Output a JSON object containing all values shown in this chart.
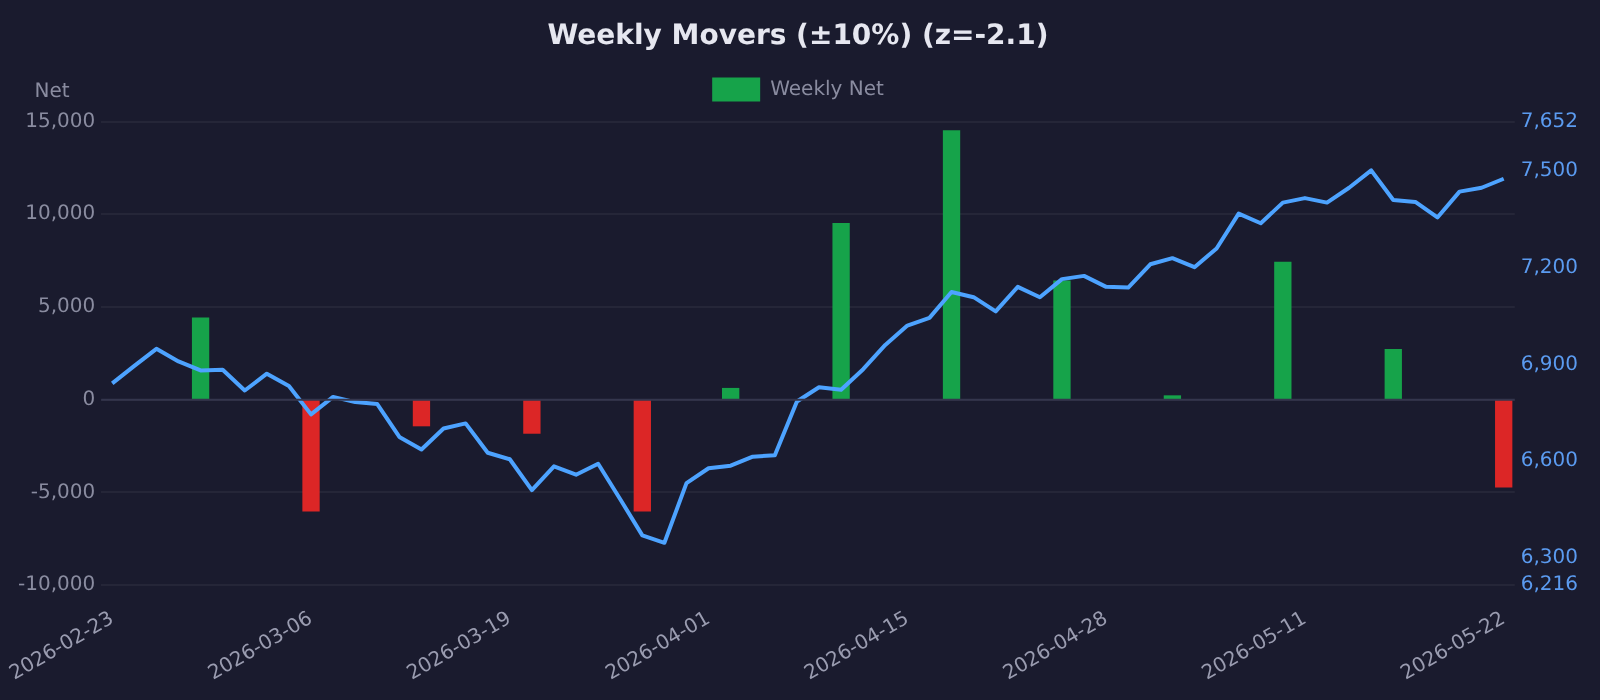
{
  "chart_data": {
    "type": "bar",
    "title": "Weekly Movers (±10%) (z=-2.1)",
    "ylabel": "Net",
    "categories": [
      "2026-02-23",
      null,
      null,
      null,
      null,
      null,
      null,
      null,
      null,
      "2026-03-06",
      null,
      null,
      null,
      null,
      null,
      null,
      null,
      null,
      "2026-03-19",
      null,
      null,
      null,
      null,
      null,
      null,
      null,
      null,
      "2026-04-01",
      null,
      null,
      null,
      null,
      null,
      null,
      null,
      null,
      "2026-04-15",
      null,
      null,
      null,
      null,
      null,
      null,
      null,
      null,
      "2026-04-28",
      null,
      null,
      null,
      null,
      null,
      null,
      null,
      null,
      "2026-05-11",
      null,
      null,
      null,
      null,
      null,
      null,
      null,
      null,
      "2026-05-22"
    ],
    "series": [
      {
        "type": "bar",
        "name": "Weekly Net",
        "values": [
          null,
          null,
          null,
          null,
          4400,
          null,
          null,
          null,
          null,
          -6000,
          null,
          null,
          null,
          null,
          -1400,
          null,
          null,
          null,
          null,
          -1800,
          null,
          null,
          null,
          null,
          -6000,
          null,
          null,
          null,
          600,
          null,
          null,
          null,
          null,
          9500,
          null,
          null,
          null,
          null,
          14500,
          null,
          null,
          null,
          null,
          6400,
          null,
          null,
          null,
          null,
          200,
          null,
          null,
          null,
          null,
          7400,
          null,
          null,
          null,
          null,
          2700,
          null,
          null,
          null,
          null,
          -4700
        ],
        "colors": [
          null,
          null,
          null,
          null,
          "#16a34a",
          null,
          null,
          null,
          null,
          "#dc2626",
          null,
          null,
          null,
          null,
          "#dc2626",
          null,
          null,
          null,
          null,
          "#dc2626",
          null,
          null,
          null,
          null,
          "#dc2626",
          null,
          null,
          null,
          "#16a34a",
          null,
          null,
          null,
          null,
          "#16a34a",
          null,
          null,
          null,
          null,
          "#16a34a",
          null,
          null,
          null,
          null,
          "#16a34a",
          null,
          null,
          null,
          null,
          "#16a34a",
          null,
          null,
          null,
          null,
          "#16a34a",
          null,
          null,
          null,
          null,
          "#16a34a",
          null,
          null,
          null,
          null,
          "#dc2626"
        ]
      },
      {
        "type": "line",
        "axis": "y2",
        "color": "#4da3ff",
        "values": [
          6841,
          6895,
          6948,
          6909,
          6881,
          6883,
          6819,
          6871,
          6833,
          6745,
          6799,
          6783,
          6777,
          6675,
          6636,
          6701,
          6717,
          6626,
          6606,
          6510,
          6584,
          6558,
          6592,
          6482,
          6370,
          6347,
          6532,
          6578,
          6586,
          6614,
          6618,
          6785,
          6829,
          6821,
          6885,
          6960,
          7020,
          7044,
          7124,
          7108,
          7064,
          7140,
          7108,
          7164,
          7174,
          7140,
          7138,
          7210,
          7229,
          7201,
          7259,
          7367,
          7337,
          7401,
          7415,
          7401,
          7447,
          7501,
          7409,
          7403,
          7355,
          7435,
          7447,
          7475
        ]
      }
    ],
    "ylim": [
      -10000,
      15000
    ],
    "yticks": [
      {
        "value": -10000,
        "label": "-10,000"
      },
      {
        "value": -5000,
        "label": "-5,000"
      },
      0,
      {
        "value": 5000,
        "label": "5,000"
      },
      {
        "value": 10000,
        "label": "10,000"
      },
      {
        "value": 15000,
        "label": "15,000"
      }
    ],
    "y2lim": [
      6216,
      7652
    ],
    "y2ticks": [
      {
        "value": 6216,
        "label": "6,216"
      },
      {
        "value": 6300,
        "label": "6,300"
      },
      {
        "value": 6600,
        "label": "6,600"
      },
      {
        "value": 6900,
        "label": "6,900"
      },
      {
        "value": 7200,
        "label": "7,200"
      },
      {
        "value": 7500,
        "label": "7,500"
      },
      {
        "value": 7652,
        "label": "7,652"
      }
    ],
    "grid": "y",
    "legend": "top",
    "marker": "none"
  }
}
